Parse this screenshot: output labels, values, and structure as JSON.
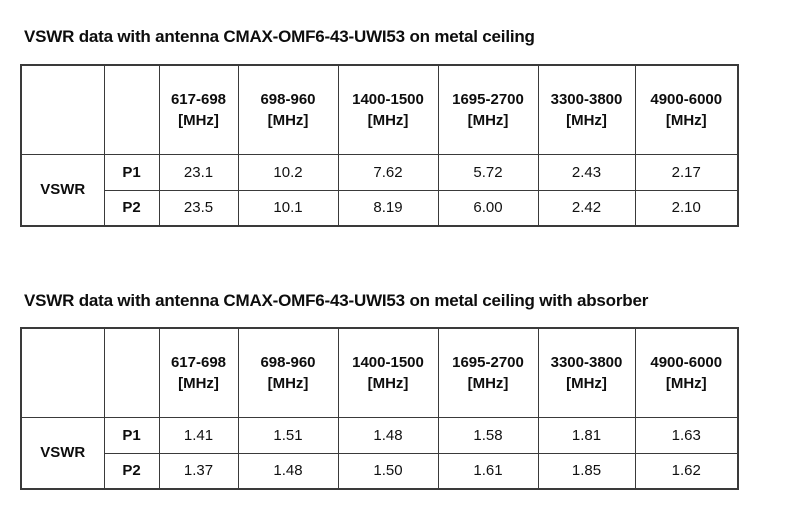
{
  "colors": {
    "background": "#ffffff",
    "table_border": "#3a3a3a",
    "text": "#000000"
  },
  "tables": [
    {
      "title": "VSWR data with antenna CMAX-OMF6-43-UWI53 on metal ceiling",
      "group_label": "VSWR",
      "headers": [
        "617-698\n[MHz]",
        "698-960\n[MHz]",
        "1400-1500\n[MHz]",
        "1695-2700\n[MHz]",
        "3300-3800\n[MHz]",
        "4900-6000\n[MHz]"
      ],
      "rows": [
        {
          "label": "P1",
          "values": [
            "23.1",
            "10.2",
            "7.62",
            "5.72",
            "2.43",
            "2.17"
          ]
        },
        {
          "label": "P2",
          "values": [
            "23.5",
            "10.1",
            "8.19",
            "6.00",
            "2.42",
            "2.10"
          ]
        }
      ]
    },
    {
      "title": "VSWR data with antenna CMAX-OMF6-43-UWI53 on metal ceiling with absorber",
      "group_label": "VSWR",
      "headers": [
        "617-698\n[MHz]",
        "698-960\n[MHz]",
        "1400-1500\n[MHz]",
        "1695-2700\n[MHz]",
        "3300-3800\n[MHz]",
        "4900-6000\n[MHz]"
      ],
      "rows": [
        {
          "label": "P1",
          "values": [
            "1.41",
            "1.51",
            "1.48",
            "1.58",
            "1.81",
            "1.63"
          ]
        },
        {
          "label": "P2",
          "values": [
            "1.37",
            "1.48",
            "1.50",
            "1.61",
            "1.85",
            "1.62"
          ]
        }
      ]
    }
  ]
}
